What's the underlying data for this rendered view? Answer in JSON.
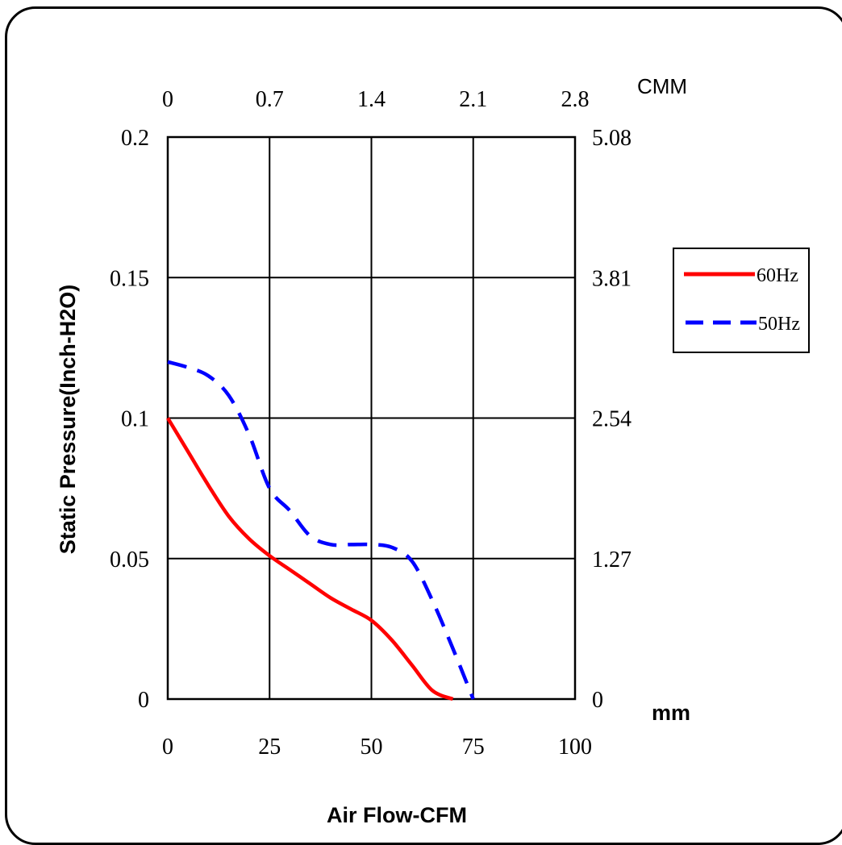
{
  "chart_data": {
    "type": "line",
    "xlabel": "Air Flow-CFM",
    "ylabel": "Static Pressure(Inch-H2O)",
    "xlim": [
      0,
      100
    ],
    "ylim": [
      0,
      0.2
    ],
    "x_ticks": [
      "0",
      "25",
      "50",
      "75",
      "100"
    ],
    "y_ticks": [
      "0",
      "0.05",
      "0.1",
      "0.15",
      "0.2"
    ],
    "top_axis": {
      "unit": "CMM",
      "ticks": [
        "0",
        "0.7",
        "1.4",
        "2.1",
        "2.8"
      ]
    },
    "right_axis": {
      "unit": "mm",
      "ticks": [
        "0",
        "1.27",
        "2.54",
        "3.81",
        "5.08"
      ]
    },
    "grid": true,
    "legend_position": "right",
    "series": [
      {
        "name": "60Hz",
        "color": "#ff0000",
        "style": "solid",
        "x": [
          0,
          5,
          10,
          15,
          20,
          25,
          30,
          35,
          40,
          45,
          50,
          55,
          60,
          65,
          70
        ],
        "y": [
          0.1,
          0.088,
          0.076,
          0.065,
          0.057,
          0.051,
          0.046,
          0.041,
          0.036,
          0.032,
          0.028,
          0.021,
          0.012,
          0.003,
          0.0
        ]
      },
      {
        "name": "50Hz",
        "color": "#0000ff",
        "style": "dashed",
        "x": [
          0,
          5,
          10,
          15,
          20,
          25,
          30,
          35,
          40,
          45,
          50,
          55,
          60,
          65,
          70,
          75
        ],
        "y": [
          0.12,
          0.118,
          0.115,
          0.108,
          0.094,
          0.075,
          0.067,
          0.058,
          0.055,
          0.055,
          0.055,
          0.054,
          0.049,
          0.035,
          0.018,
          0.0
        ]
      }
    ]
  }
}
